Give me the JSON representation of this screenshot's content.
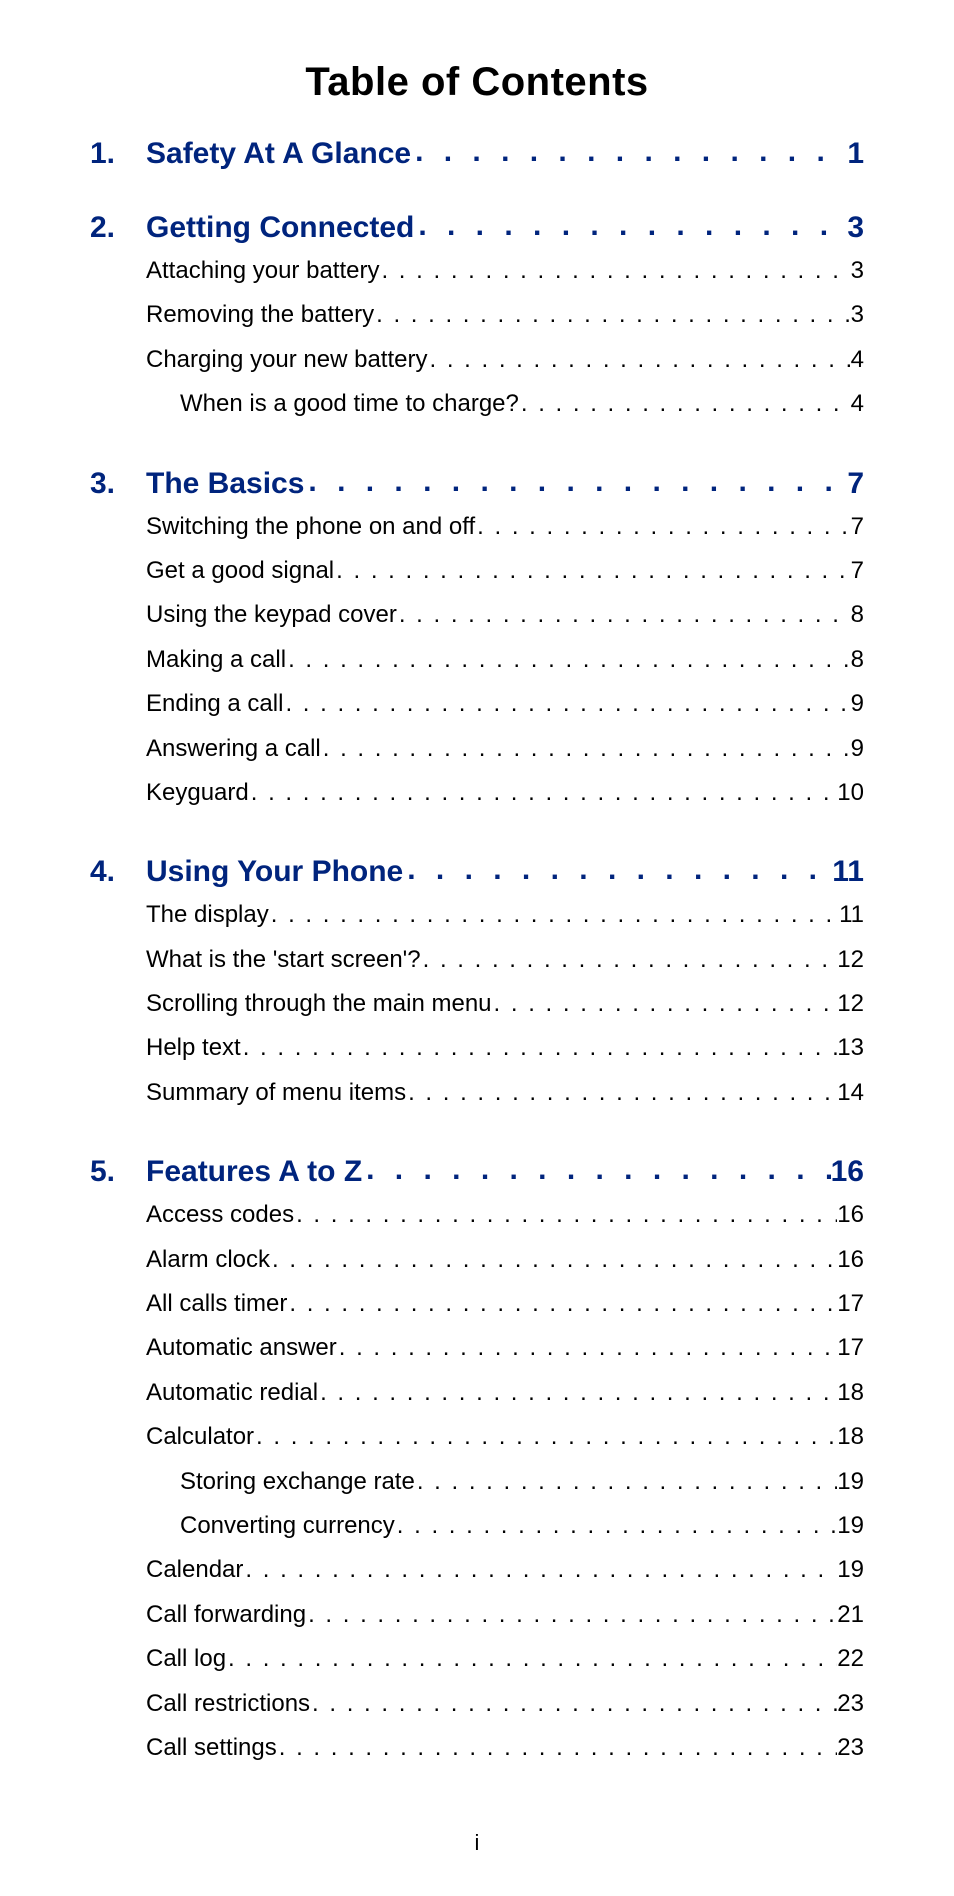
{
  "title": "Table of Contents",
  "page_number": "i",
  "colors": {
    "chapter": "#00247d",
    "text": "#000000",
    "background": "#ffffff"
  },
  "typography": {
    "title_fontsize": 40,
    "chapter_fontsize": 30,
    "entry_fontsize": 24,
    "font_family": "Arial"
  },
  "chapters": [
    {
      "num": "1.",
      "title": "Safety At A Glance",
      "page": "1",
      "entries": []
    },
    {
      "num": "2.",
      "title": "Getting Connected",
      "page": "3",
      "entries": [
        {
          "title": "Attaching your battery",
          "page": "3",
          "indent": false
        },
        {
          "title": "Removing the battery",
          "page": "3",
          "indent": false
        },
        {
          "title": "Charging your new battery",
          "page": "4",
          "indent": false
        },
        {
          "title": "When is a good time to charge?",
          "page": "4",
          "indent": true
        }
      ]
    },
    {
      "num": "3.",
      "title": "The Basics",
      "page": "7",
      "entries": [
        {
          "title": "Switching the phone on and off",
          "page": "7",
          "indent": false
        },
        {
          "title": "Get a good signal",
          "page": "7",
          "indent": false
        },
        {
          "title": "Using the keypad cover",
          "page": "8",
          "indent": false
        },
        {
          "title": "Making a call",
          "page": "8",
          "indent": false
        },
        {
          "title": "Ending a call",
          "page": "9",
          "indent": false
        },
        {
          "title": "Answering a call",
          "page": "9",
          "indent": false
        },
        {
          "title": "Keyguard",
          "page": "10",
          "indent": false
        }
      ]
    },
    {
      "num": "4.",
      "title": "Using Your Phone",
      "page": "11",
      "entries": [
        {
          "title": "The display",
          "page": "11",
          "indent": false
        },
        {
          "title": "What is the 'start screen'?",
          "page": "12",
          "indent": false
        },
        {
          "title": "Scrolling through the main menu",
          "page": "12",
          "indent": false
        },
        {
          "title": "Help text",
          "page": "13",
          "indent": false
        },
        {
          "title": "Summary of menu items",
          "page": "14",
          "indent": false
        }
      ]
    },
    {
      "num": "5.",
      "title": "Features A to Z",
      "page": "16",
      "entries": [
        {
          "title": "Access codes",
          "page": "16",
          "indent": false
        },
        {
          "title": "Alarm clock",
          "page": "16",
          "indent": false
        },
        {
          "title": "All calls timer",
          "page": "17",
          "indent": false
        },
        {
          "title": "Automatic answer",
          "page": "17",
          "indent": false
        },
        {
          "title": "Automatic redial",
          "page": "18",
          "indent": false
        },
        {
          "title": "Calculator",
          "page": "18",
          "indent": false
        },
        {
          "title": "Storing exchange rate",
          "page": "19",
          "indent": true
        },
        {
          "title": "Converting currency",
          "page": "19",
          "indent": true
        },
        {
          "title": "Calendar",
          "page": "19",
          "indent": false
        },
        {
          "title": "Call forwarding",
          "page": "21",
          "indent": false
        },
        {
          "title": "Call log",
          "page": "22",
          "indent": false
        },
        {
          "title": "Call restrictions",
          "page": "23",
          "indent": false
        },
        {
          "title": "Call settings",
          "page": "23",
          "indent": false
        }
      ]
    }
  ]
}
